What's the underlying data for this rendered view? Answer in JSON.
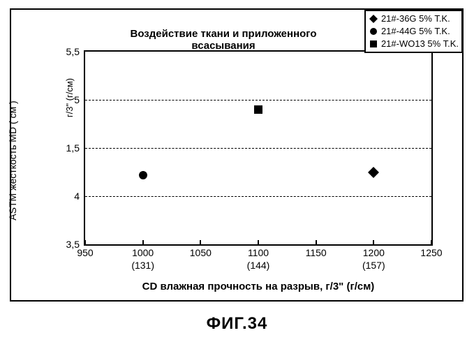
{
  "chart": {
    "type": "scatter",
    "title": "Воздействие ткани и приложенного всасывания",
    "figure_caption": "ФИГ.34",
    "background_color": "#ffffff",
    "border_color": "#000000",
    "grid_color": "#000000",
    "title_fontsize": 15,
    "label_fontsize": 15,
    "tick_fontsize": 14,
    "y_axis": {
      "label_outer": "ASTM жесткость MD ( см )",
      "label_inner": "г/3\" (г/см)",
      "min": 3.5,
      "max": 5.5,
      "tick_step": 0.5,
      "ticks": [
        {
          "value": 3.5,
          "label": "3,5"
        },
        {
          "value": 4.0,
          "label": "4"
        },
        {
          "value": 4.5,
          "label": "1,5"
        },
        {
          "value": 5.0,
          "label": "5"
        },
        {
          "value": 5.5,
          "label": "5,5"
        }
      ],
      "grid_lines": [
        4.0,
        4.5,
        5.0
      ]
    },
    "x_axis": {
      "label": "CD влажная прочность на разрыв, г/3\" (г/см)",
      "min": 950,
      "max": 1250,
      "tick_step": 50,
      "ticks": [
        {
          "value": 950,
          "label": "950",
          "sub": ""
        },
        {
          "value": 1000,
          "label": "1000",
          "sub": "(131)"
        },
        {
          "value": 1050,
          "label": "1050",
          "sub": ""
        },
        {
          "value": 1100,
          "label": "1100",
          "sub": "(144)"
        },
        {
          "value": 1150,
          "label": "1150",
          "sub": ""
        },
        {
          "value": 1200,
          "label": "1200",
          "sub": "(157)"
        },
        {
          "value": 1250,
          "label": "1250",
          "sub": ""
        }
      ]
    },
    "series": [
      {
        "name": "21#-36G 5% T.K.",
        "marker": "diamond",
        "color": "#000000",
        "points": [
          {
            "x": 1200,
            "y": 4.25
          }
        ]
      },
      {
        "name": "21#-44G 5% T.K.",
        "marker": "circle",
        "color": "#000000",
        "points": [
          {
            "x": 1000,
            "y": 4.22
          }
        ]
      },
      {
        "name": "21#-WO13 5% T.K.",
        "marker": "square",
        "color": "#000000",
        "points": [
          {
            "x": 1100,
            "y": 4.9
          }
        ]
      }
    ],
    "legend": {
      "position": "top-right",
      "border_color": "#000000",
      "background_color": "#ffffff",
      "fontsize": 13
    }
  }
}
